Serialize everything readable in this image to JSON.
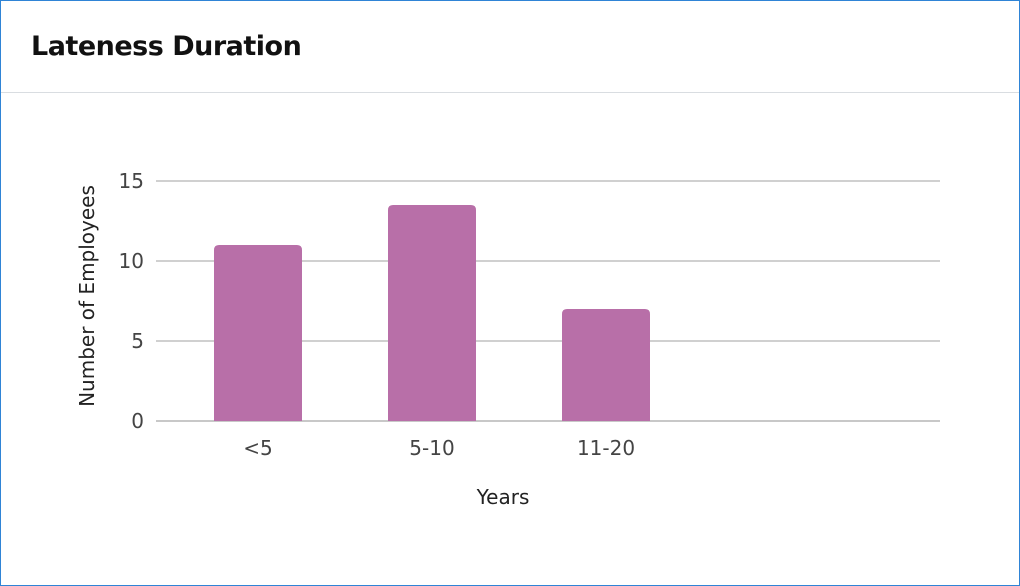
{
  "card": {
    "title": "Lateness Duration"
  },
  "colors": {
    "bar": "#b86fa8",
    "grid": "#b5b5b5",
    "border": "#2f84d6"
  },
  "chart_data": {
    "type": "bar",
    "categories": [
      "<5",
      "5-10",
      "11-20"
    ],
    "values": [
      11,
      13.5,
      7
    ],
    "xlabel": "Years",
    "ylabel": "Number of Employees",
    "ylim": [
      0,
      15
    ],
    "yticks": [
      0,
      5,
      10,
      15
    ],
    "grid": true,
    "legend": "none"
  }
}
